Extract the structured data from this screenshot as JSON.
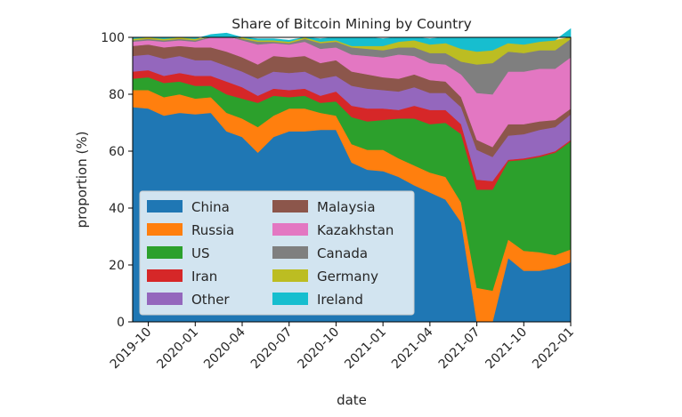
{
  "chart_data": {
    "type": "area",
    "stacked": true,
    "title": "Share of Bitcoin Mining by Country",
    "xlabel": "date",
    "ylabel": "proportion (%)",
    "ylim": [
      0,
      100
    ],
    "yticks": [
      0,
      20,
      40,
      60,
      80,
      100
    ],
    "xticks": [
      "2019-10",
      "2020-01",
      "2020-04",
      "2020-07",
      "2020-10",
      "2021-01",
      "2021-04",
      "2021-07",
      "2021-10",
      "2022-01"
    ],
    "xlim": [
      "2019-09",
      "2022-01"
    ],
    "x": [
      "2019-09",
      "2019-10",
      "2019-11",
      "2019-12",
      "2020-01",
      "2020-02",
      "2020-03",
      "2020-04",
      "2020-05",
      "2020-06",
      "2020-07",
      "2020-08",
      "2020-09",
      "2020-10",
      "2020-11",
      "2020-12",
      "2021-01",
      "2021-02",
      "2021-03",
      "2021-04",
      "2021-05",
      "2021-06",
      "2021-07",
      "2021-08",
      "2021-09",
      "2021-10",
      "2021-11",
      "2021-12",
      "2022-01"
    ],
    "series": [
      {
        "name": "China",
        "color": "#1f77b4",
        "values": [
          75.5,
          75.0,
          72.5,
          73.5,
          73.0,
          73.5,
          67.0,
          65.0,
          59.5,
          65.0,
          67.0,
          67.0,
          67.5,
          67.5,
          56.0,
          53.5,
          53.0,
          51.0,
          48.0,
          45.5,
          43.0,
          35.0,
          0.0,
          0.0,
          22.5,
          18.0,
          18.0,
          19.0,
          21.0
        ]
      },
      {
        "name": "Russia",
        "color": "#ff7f0e",
        "values": [
          6.0,
          6.5,
          6.5,
          6.5,
          5.5,
          5.5,
          6.5,
          6.5,
          9.0,
          7.5,
          8.0,
          8.0,
          6.0,
          5.0,
          6.5,
          7.0,
          7.5,
          6.5,
          7.0,
          7.0,
          8.0,
          7.0,
          12.0,
          11.0,
          6.5,
          7.0,
          6.5,
          4.5,
          4.5
        ]
      },
      {
        "name": "US",
        "color": "#2ca02c",
        "values": [
          4.0,
          4.5,
          5.0,
          4.5,
          4.5,
          4.0,
          6.5,
          7.0,
          8.5,
          7.0,
          4.0,
          4.5,
          3.5,
          5.0,
          9.5,
          10.0,
          10.5,
          14.0,
          16.5,
          17.0,
          19.0,
          24.0,
          34.5,
          35.5,
          27.5,
          32.0,
          33.5,
          36.0,
          38.0
        ]
      },
      {
        "name": "Iran",
        "color": "#d62728",
        "values": [
          2.5,
          2.5,
          2.5,
          3.0,
          3.5,
          3.5,
          4.5,
          4.0,
          2.5,
          2.5,
          2.5,
          2.5,
          2.5,
          3.5,
          4.0,
          4.5,
          4.0,
          3.0,
          4.5,
          5.0,
          4.5,
          3.5,
          3.5,
          3.0,
          0.5,
          0.5,
          0.5,
          0.5,
          0.5
        ]
      },
      {
        "name": "Other",
        "color": "#9467bd",
        "values": [
          5.5,
          5.5,
          6.0,
          6.0,
          5.5,
          5.5,
          5.5,
          5.5,
          6.0,
          6.0,
          6.0,
          6.0,
          6.0,
          5.5,
          7.0,
          7.0,
          6.5,
          6.5,
          6.5,
          6.0,
          6.0,
          6.0,
          10.5,
          8.5,
          8.5,
          8.5,
          9.0,
          8.5,
          9.0
        ]
      },
      {
        "name": "Malaysia",
        "color": "#8c564b",
        "values": [
          3.5,
          3.5,
          4.0,
          3.5,
          4.5,
          4.5,
          5.0,
          5.0,
          5.0,
          5.5,
          5.5,
          5.5,
          5.5,
          5.5,
          5.0,
          5.0,
          4.5,
          4.5,
          4.5,
          4.5,
          4.0,
          3.5,
          3.5,
          3.5,
          4.0,
          3.5,
          3.0,
          2.5,
          2.0
        ]
      },
      {
        "name": "Kazakhstan",
        "color": "#e377c2",
        "values": [
          1.5,
          1.5,
          2.0,
          2.0,
          2.0,
          3.5,
          5.5,
          6.0,
          7.0,
          4.5,
          4.5,
          5.0,
          5.0,
          4.5,
          6.0,
          6.5,
          7.0,
          8.5,
          6.5,
          6.0,
          6.0,
          8.0,
          16.5,
          18.5,
          18.5,
          18.5,
          18.5,
          18.0,
          18.0
        ]
      },
      {
        "name": "Canada",
        "color": "#7f7f7f",
        "values": [
          0.5,
          0.5,
          0.5,
          0.5,
          0.5,
          0.5,
          0.5,
          0.5,
          1.0,
          0.5,
          0.5,
          1.0,
          2.0,
          2.0,
          2.5,
          2.5,
          2.5,
          2.5,
          3.0,
          3.5,
          4.0,
          4.5,
          10.0,
          11.0,
          7.0,
          6.5,
          6.5,
          6.5,
          6.5
        ]
      },
      {
        "name": "Germany",
        "color": "#bcbd22",
        "values": [
          0.5,
          0.5,
          0.5,
          0.5,
          0.5,
          0.5,
          0.5,
          0.5,
          0.5,
          0.5,
          0.5,
          0.5,
          0.5,
          0.5,
          0.5,
          1.0,
          1.5,
          2.0,
          2.5,
          3.0,
          3.5,
          4.5,
          4.5,
          4.5,
          3.0,
          3.0,
          3.0,
          3.5,
          3.5
        ]
      },
      {
        "name": "Ireland",
        "color": "#17becf",
        "values": [
          0.5,
          0.5,
          0.5,
          0.5,
          0.5,
          0.5,
          0.5,
          0.5,
          0.5,
          0.5,
          0.5,
          0.5,
          1.0,
          1.5,
          3.0,
          3.0,
          2.5,
          2.0,
          1.5,
          2.0,
          2.5,
          4.0,
          5.0,
          4.5,
          2.0,
          2.5,
          2.5,
          3.0,
          3.0
        ]
      }
    ],
    "legend": {
      "placement": "lower-left",
      "columns": 2
    },
    "grid": false
  }
}
